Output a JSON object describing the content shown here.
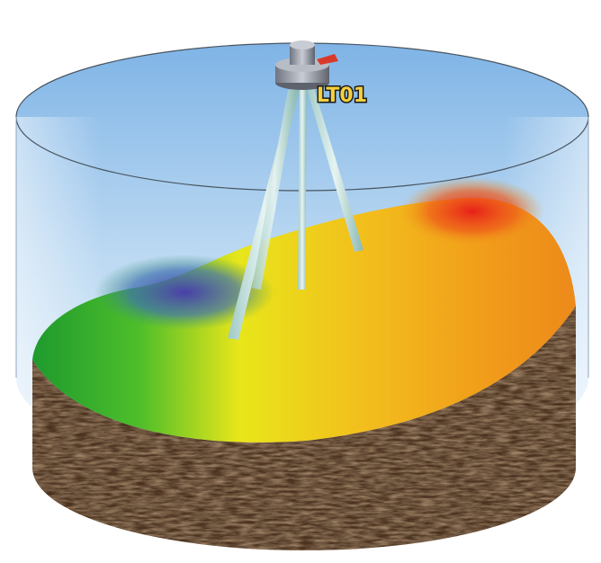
{
  "device_label": "LT01"
}
